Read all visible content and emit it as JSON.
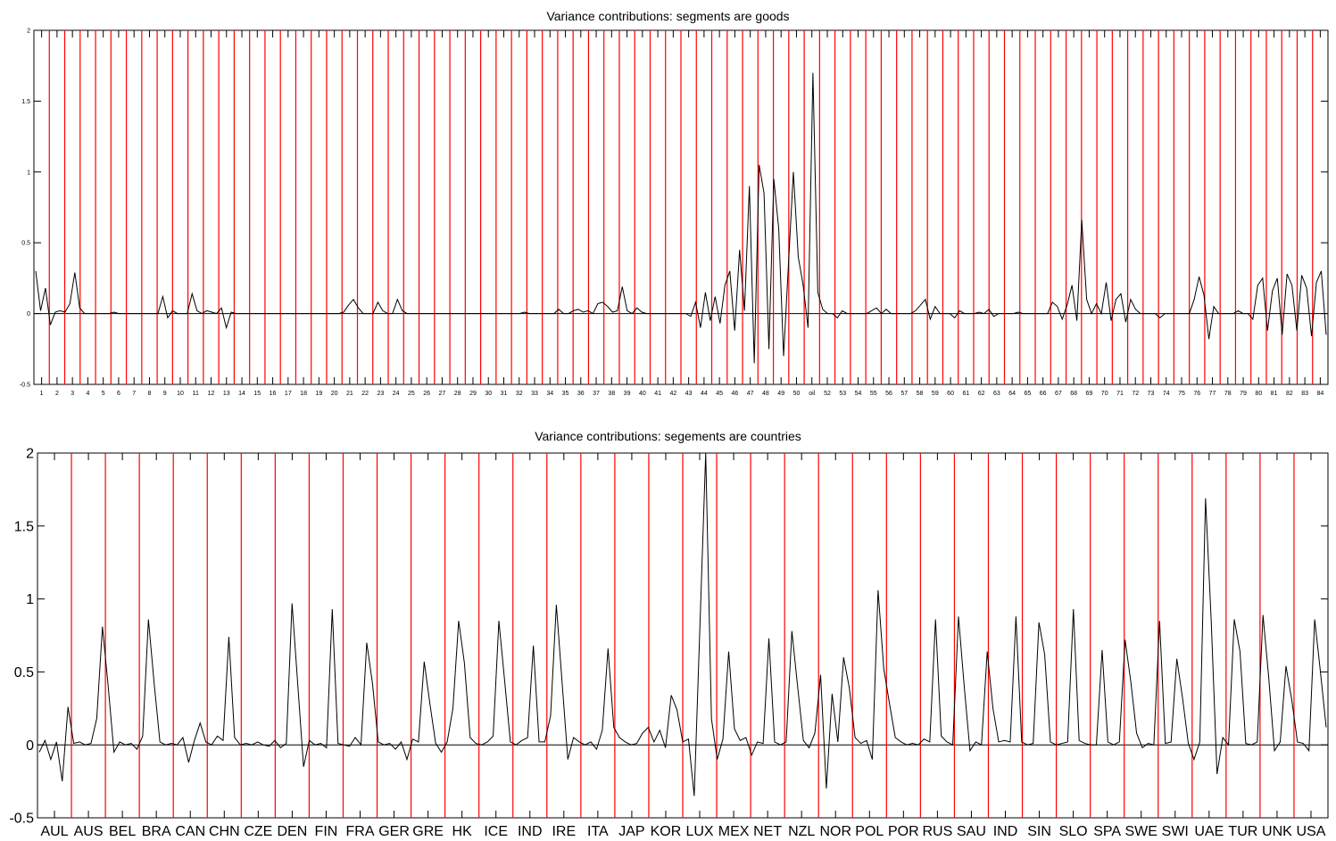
{
  "chart_data": [
    {
      "type": "line",
      "title": "Variance contributions: segments are goods",
      "ylim": [
        -0.5,
        2
      ],
      "yticks": [
        "-0.5",
        "0",
        "0.5",
        "1",
        "1.5",
        "2"
      ],
      "segment_labels": [
        "1",
        "2",
        "3",
        "4",
        "5",
        "6",
        "7",
        "8",
        "9",
        "10",
        "11",
        "12",
        "13",
        "14",
        "15",
        "16",
        "17",
        "18",
        "19",
        "20",
        "21",
        "22",
        "23",
        "24",
        "25",
        "26",
        "27",
        "28",
        "29",
        "30",
        "31",
        "32",
        "33",
        "34",
        "35",
        "36",
        "37",
        "38",
        "39",
        "40",
        "41",
        "42",
        "43",
        "44",
        "45",
        "46",
        "47",
        "48",
        "49",
        "50",
        "oil",
        "52",
        "53",
        "54",
        "55",
        "56",
        "57",
        "58",
        "59",
        "60",
        "61",
        "62",
        "63",
        "64",
        "65",
        "66",
        "67",
        "68",
        "69",
        "70",
        "71",
        "72",
        "73",
        "74",
        "75",
        "76",
        "77",
        "78",
        "79",
        "80",
        "81",
        "82",
        "83",
        "84"
      ],
      "grid": false,
      "separator_color": "#ff0000",
      "line_color": "#000000",
      "series": [
        {
          "values": [
            0.3,
            0.02,
            0.18,
            -0.08,
            0.01,
            0.02,
            0.01,
            0.07,
            0.29,
            0.04,
            0,
            0,
            0,
            0,
            0,
            0,
            0.01,
            0,
            0,
            0,
            0,
            0,
            0,
            0,
            0,
            0,
            0.12,
            -0.03,
            0.02,
            0,
            0,
            0,
            0.14,
            0.02,
            0,
            0.02,
            0.01,
            0,
            0.04,
            -0.1,
            0.01,
            0,
            0,
            0,
            0,
            0,
            0,
            0,
            0,
            0,
            0,
            0,
            0,
            0,
            0,
            0,
            0,
            0,
            0,
            0,
            0,
            0,
            0,
            0.01,
            0.06,
            0.1,
            0.04,
            0,
            0,
            0,
            0.08,
            0.02,
            0,
            0,
            0.1,
            0.02,
            0,
            0,
            0,
            0,
            0,
            0,
            0,
            0,
            0,
            0,
            0,
            0,
            0,
            0,
            0,
            0,
            0,
            0,
            0,
            0,
            0,
            0,
            0,
            0,
            0.01,
            0,
            0,
            0,
            0,
            0,
            0,
            0.03,
            0,
            0,
            0.02,
            0.03,
            0.01,
            0.02,
            0,
            0.07,
            0.08,
            0.05,
            0.01,
            0.02,
            0.19,
            0.02,
            0,
            0.04,
            0.01,
            0,
            0,
            0,
            0,
            0,
            0,
            0,
            0,
            0,
            -0.02,
            0.08,
            -0.1,
            0.15,
            -0.05,
            0.12,
            -0.07,
            0.2,
            0.3,
            -0.12,
            0.45,
            0.02,
            0.9,
            -0.35,
            1.05,
            0.85,
            -0.25,
            0.95,
            0.6,
            -0.3,
            0.35,
            1.0,
            0.4,
            0.2,
            -0.1,
            1.7,
            0.15,
            0.03,
            0,
            0,
            -0.03,
            0.02,
            0,
            0,
            0,
            0,
            0,
            0.02,
            0.04,
            0,
            0.03,
            0,
            0,
            0,
            0,
            0,
            0.02,
            0.06,
            0.1,
            -0.04,
            0.05,
            0,
            0,
            0,
            -0.03,
            0.02,
            0,
            0,
            0,
            0.01,
            0,
            0.03,
            -0.02,
            0,
            0,
            0,
            0,
            0.01,
            0,
            0,
            0,
            0,
            0,
            0,
            0.08,
            0.05,
            -0.04,
            0.06,
            0.2,
            -0.05,
            0.66,
            0.1,
            0,
            0.07,
            0,
            0.22,
            -0.05,
            0.1,
            0.14,
            -0.06,
            0.1,
            0.03,
            0,
            0,
            0,
            0,
            -0.03,
            0,
            0,
            0,
            0,
            0,
            0,
            0.1,
            0.26,
            0.13,
            -0.18,
            0.05,
            0,
            0,
            0,
            0,
            0.02,
            0,
            0,
            -0.04,
            0.2,
            0.25,
            -0.12,
            0.16,
            0.25,
            -0.15,
            0.28,
            0.2,
            -0.12,
            0.27,
            0.18,
            -0.16,
            0.22,
            0.3,
            -0.15
          ]
        }
      ]
    },
    {
      "type": "line",
      "title": "Variance contributions: segements are countries",
      "ylim": [
        -0.5,
        2
      ],
      "yticks": [
        "-0.5",
        "0",
        "0.5",
        "1",
        "1.5",
        "2"
      ],
      "segment_labels": [
        "AUL",
        "AUS",
        "BEL",
        "BRA",
        "CAN",
        "CHN",
        "CZE",
        "DEN",
        "FIN",
        "FRA",
        "GER",
        "GRE",
        "HK",
        "ICE",
        "IND",
        "IRE",
        "ITA",
        "JAP",
        "KOR",
        "LUX",
        "MEX",
        "NET",
        "NZL",
        "NOR",
        "POL",
        "POR",
        "RUS",
        "SAU",
        "IND",
        "SIN",
        "SLO",
        "SPA",
        "SWE",
        "SWI",
        "UAE",
        "TUR",
        "UNK",
        "USA"
      ],
      "grid": false,
      "separator_color": "#ff0000",
      "line_color": "#000000",
      "series": [
        {
          "values": [
            -0.05,
            0.03,
            -0.1,
            0.02,
            -0.25,
            0.26,
            0.01,
            0.02,
            0,
            0.01,
            0.18,
            0.81,
            0.4,
            -0.05,
            0.02,
            0,
            0.01,
            -0.03,
            0.06,
            0.86,
            0.42,
            0.02,
            0,
            0.01,
            0,
            0.05,
            -0.12,
            0.03,
            0.15,
            0.02,
            0,
            0.06,
            0.03,
            0.74,
            0.05,
            0,
            0.01,
            0,
            0.02,
            0,
            -0.01,
            0.03,
            -0.02,
            0.01,
            0.97,
            0.41,
            -0.15,
            0.03,
            0,
            0.01,
            -0.02,
            0.93,
            0.01,
            0,
            -0.01,
            0.05,
            0,
            0.7,
            0.42,
            0.02,
            0,
            0.01,
            -0.03,
            0.02,
            -0.1,
            0.04,
            0.02,
            0.57,
            0.28,
            0.01,
            -0.05,
            0.02,
            0.25,
            0.85,
            0.56,
            0.05,
            0.01,
            0,
            0.02,
            0.06,
            0.85,
            0.44,
            0.02,
            0,
            0.03,
            0.05,
            0.68,
            0.02,
            0.02,
            0.2,
            0.96,
            0.43,
            -0.1,
            0.05,
            0.02,
            0,
            0.02,
            -0.03,
            0.1,
            0.66,
            0.12,
            0.05,
            0.02,
            0,
            0.01,
            0.08,
            0.12,
            0.02,
            0.1,
            -0.02,
            0.34,
            0.24,
            0.02,
            0.04,
            -0.35,
            0.82,
            2.0,
            0.18,
            -0.1,
            0.04,
            0.64,
            0.11,
            0.03,
            0.05,
            -0.07,
            0.02,
            0.01,
            0.73,
            0.02,
            0,
            0.02,
            0.78,
            0.4,
            0.03,
            -0.02,
            0.08,
            0.48,
            -0.3,
            0.35,
            0.02,
            0.6,
            0.39,
            0.05,
            0.01,
            0.03,
            -0.1,
            1.06,
            0.52,
            0.28,
            0.05,
            0.02,
            0,
            0.01,
            0,
            0.04,
            0.02,
            0.86,
            0.06,
            0.02,
            0,
            0.88,
            0.4,
            -0.04,
            0.02,
            0,
            0.64,
            0.25,
            0.02,
            0.03,
            0.02,
            0.88,
            0.02,
            0,
            0.01,
            0.84,
            0.62,
            0.02,
            0,
            0.01,
            0.02,
            0.93,
            0.03,
            0.01,
            0,
            0,
            0.65,
            0.02,
            0,
            0.02,
            0.72,
            0.43,
            0.08,
            -0.02,
            0.01,
            0,
            0.85,
            0.01,
            0.02,
            0.59,
            0.32,
            0.01,
            -0.1,
            0.02,
            1.69,
            0.84,
            -0.2,
            0.05,
            0,
            0.86,
            0.64,
            0.01,
            0,
            0.02,
            0.89,
            0.46,
            -0.04,
            0.02,
            0.54,
            0.31,
            0.02,
            0.01,
            -0.04,
            0.86,
            0.5,
            0.12
          ]
        }
      ]
    }
  ]
}
